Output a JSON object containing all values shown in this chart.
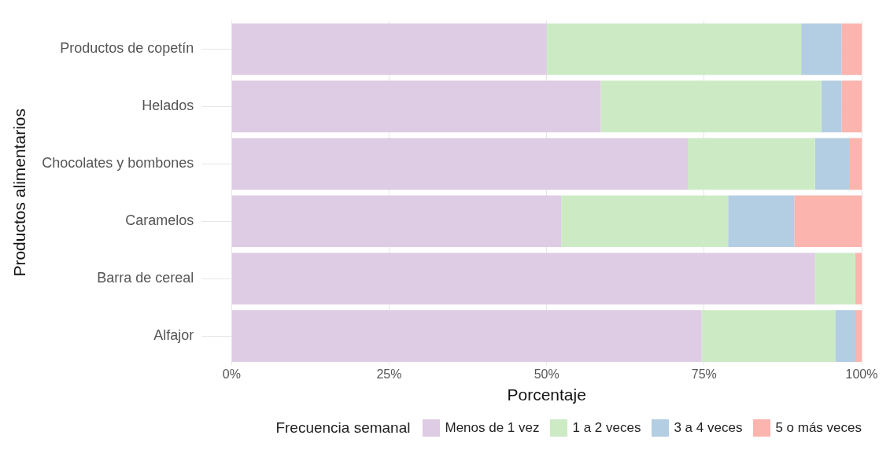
{
  "chart_data": {
    "type": "bar",
    "orientation": "horizontal",
    "stacked": true,
    "xlabel": "Porcentaje",
    "ylabel": "Productos alimentarios",
    "legend_title": "Frecuencia semanal",
    "legend": "bottom",
    "grid": true,
    "categories": [
      "Productos de copetín",
      "Helados",
      "Chocolates y bombones",
      "Caramelos",
      "Barra de cereal",
      "Alfajor"
    ],
    "xlim": [
      0,
      100
    ],
    "xticks": [
      {
        "value": 0,
        "label": "0%"
      },
      {
        "value": 25,
        "label": "25%"
      },
      {
        "value": 50,
        "label": "50%"
      },
      {
        "value": 75,
        "label": "75%"
      },
      {
        "value": 100,
        "label": "100%"
      }
    ],
    "series": [
      {
        "name": "Menos de 1 vez",
        "color": "#decbe4",
        "values": [
          50.0,
          58.6,
          72.4,
          52.3,
          92.6,
          74.6
        ]
      },
      {
        "name": "1 a 2 veces",
        "color": "#ccebc5",
        "values": [
          40.4,
          35.0,
          20.2,
          26.5,
          6.4,
          21.2
        ]
      },
      {
        "name": "3 a 4 veces",
        "color": "#b3cde3",
        "values": [
          6.4,
          3.2,
          5.4,
          10.5,
          0,
          3.2
        ]
      },
      {
        "name": "5 o más veces",
        "color": "#fbb4ae",
        "values": [
          3.2,
          3.2,
          2.0,
          10.7,
          1.0,
          1.0
        ]
      }
    ]
  }
}
